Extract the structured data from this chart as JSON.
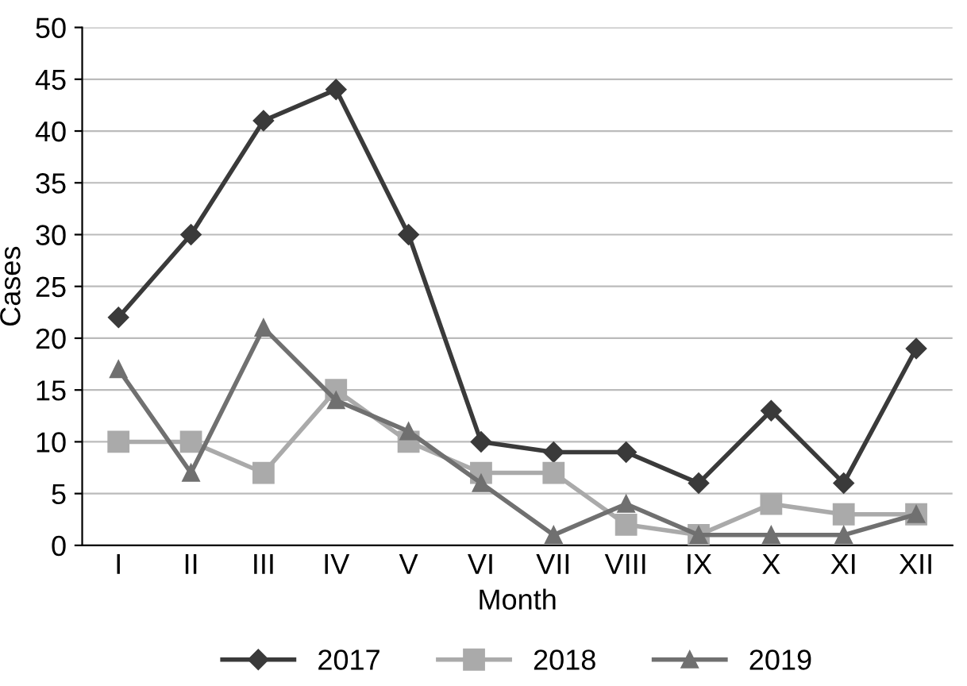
{
  "chart_data": {
    "type": "line",
    "xlabel": "Month",
    "ylabel": "Cases",
    "categories": [
      "I",
      "II",
      "III",
      "IV",
      "V",
      "VI",
      "VII",
      "VIII",
      "IX",
      "X",
      "XI",
      "XII"
    ],
    "series": [
      {
        "name": "2017",
        "color": "#3a3a3a",
        "marker": "diamond",
        "values": [
          22,
          30,
          41,
          44,
          30,
          10,
          9,
          9,
          6,
          13,
          6,
          19
        ]
      },
      {
        "name": "2018",
        "color": "#aaaaaa",
        "marker": "square",
        "values": [
          10,
          10,
          7,
          15,
          10,
          7,
          7,
          2,
          1,
          4,
          3,
          3
        ]
      },
      {
        "name": "2019",
        "color": "#707070",
        "marker": "triangle",
        "values": [
          17,
          7,
          21,
          14,
          11,
          6,
          1,
          4,
          1,
          1,
          1,
          3
        ]
      }
    ],
    "ylim": [
      0,
      50
    ],
    "yticks": [
      0,
      5,
      10,
      15,
      20,
      25,
      30,
      35,
      40,
      45,
      50
    ],
    "grid": "y",
    "legend": "bottom"
  }
}
